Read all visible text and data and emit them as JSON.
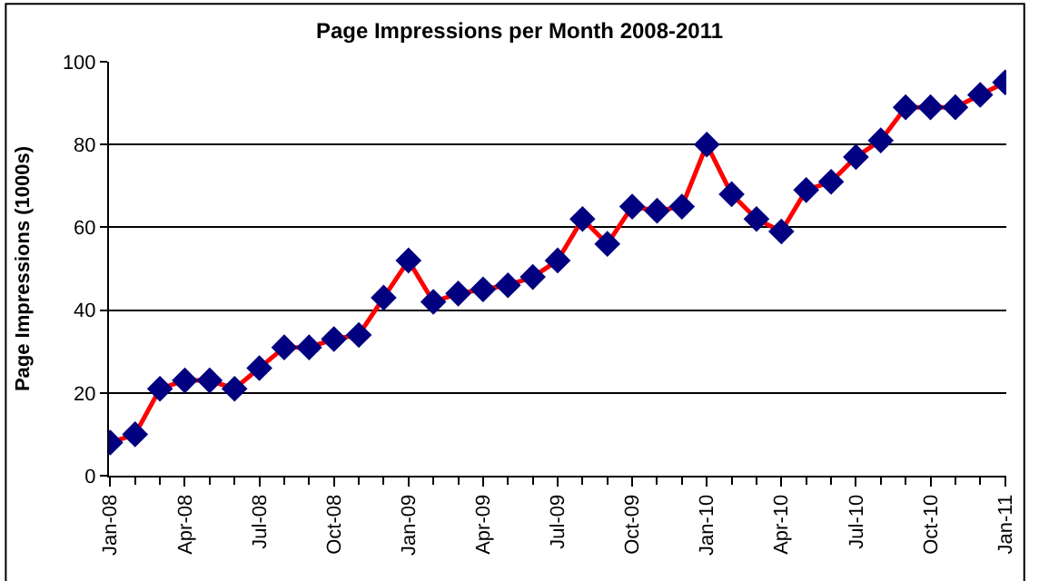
{
  "chart_data": {
    "type": "line",
    "title": "Page Impressions per Month 2008-2011",
    "ylabel": "Page Impressions (1000s)",
    "categories": [
      "Jan-08",
      null,
      null,
      "Apr-08",
      null,
      null,
      "Jul-08",
      null,
      null,
      "Oct-08",
      null,
      null,
      "Jan-09",
      null,
      null,
      "Apr-09",
      null,
      null,
      "Jul-09",
      null,
      null,
      "Oct-09",
      null,
      null,
      "Jan-10",
      null,
      null,
      "Apr-10",
      null,
      null,
      "Jul-10",
      null,
      null,
      "Oct-10",
      null,
      null,
      "Jan-11"
    ],
    "series": [
      {
        "color": "#ff0000",
        "colors": [
          "#000080",
          "#000080",
          "#000080",
          "#000080",
          "#000080",
          "#000080",
          "#000080",
          "#000080",
          "#000080",
          "#000080",
          "#000080",
          "#000080",
          "#000080",
          "#000080",
          "#000080",
          "#000080",
          "#000080",
          "#000080",
          "#000080",
          "#000080",
          "#000080",
          "#000080",
          "#000080",
          "#000080",
          "#000080",
          "#000080",
          "#000080",
          "#000080",
          "#000080",
          "#000080",
          "#000080",
          "#000080",
          "#000080",
          "#000080",
          "#000080",
          "#000080",
          "#000080"
        ],
        "values": [
          8,
          10,
          21,
          23,
          23,
          21,
          26,
          31,
          31,
          33,
          34,
          43,
          52,
          42,
          44,
          45,
          46,
          48,
          52,
          62,
          56,
          65,
          64,
          65,
          80,
          68,
          62,
          59,
          69,
          71,
          77,
          81,
          89,
          89,
          89,
          92,
          95
        ]
      }
    ],
    "ylim": [
      0,
      100
    ],
    "yticks": [
      0,
      20,
      40,
      60,
      80,
      100
    ],
    "grid": "y",
    "marker": "diamond",
    "line_style": "solid"
  }
}
